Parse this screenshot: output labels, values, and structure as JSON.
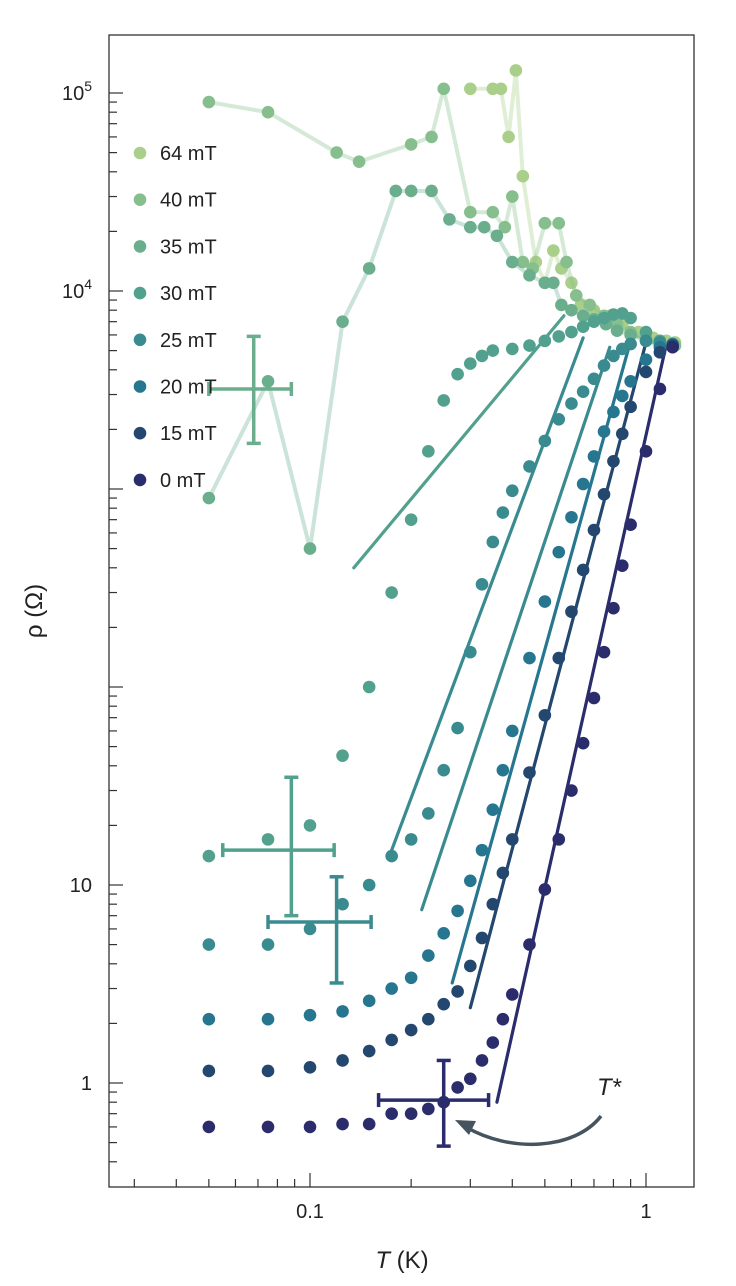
{
  "chart_data": {
    "type": "scatter",
    "xlabel_symbol": "T",
    "xlabel_unit": " (K)",
    "ylabel": "ρ (Ω)",
    "xscale": "log",
    "yscale": "log",
    "xlim": [
      0.028,
      1.4
    ],
    "ylim": [
      0.3,
      200000
    ],
    "grid": false,
    "legend_placement": "top-left",
    "x_ticks": [
      {
        "value": 0.1,
        "label": "0.1"
      },
      {
        "value": 1,
        "label": "1"
      }
    ],
    "y_ticks": [
      {
        "value": 1,
        "base": "1",
        "exp": ""
      },
      {
        "value": 10,
        "base": "10",
        "exp": ""
      },
      {
        "value": 10000,
        "base": "10",
        "exp": "4"
      },
      {
        "value": 100000,
        "base": "10",
        "exp": "5"
      }
    ],
    "series": [
      {
        "name": "64 mT",
        "color": "#a9cf8a",
        "line": true,
        "x": [
          0.3,
          0.35,
          0.37,
          0.39,
          0.41,
          0.43,
          0.47,
          0.5,
          0.53,
          0.56,
          0.6,
          0.64,
          0.7,
          0.78,
          0.85,
          0.95,
          1.05,
          1.15,
          1.22
        ],
        "y": [
          105000,
          105000,
          105000,
          60000,
          130000,
          38000,
          14000,
          11000,
          16000,
          13000,
          11000,
          8500,
          8000,
          7500,
          6800,
          6200,
          5800,
          5600,
          5500
        ]
      },
      {
        "name": "40 mT",
        "color": "#86bf8d",
        "line": true,
        "x": [
          0.05,
          0.075,
          0.12,
          0.14,
          0.2,
          0.23,
          0.25,
          0.3,
          0.35,
          0.38,
          0.4,
          0.43,
          0.46,
          0.5,
          0.55,
          0.58,
          0.62,
          0.68,
          0.75,
          0.82,
          0.9,
          1.0,
          1.1,
          1.22
        ],
        "y": [
          90000,
          80000,
          50000,
          45000,
          55000,
          60000,
          105000,
          25000,
          25000,
          21000,
          30000,
          14000,
          13000,
          22000,
          22000,
          14000,
          9500,
          8500,
          7500,
          6800,
          6200,
          5800,
          5500,
          5300
        ]
      },
      {
        "name": "35 mT",
        "color": "#6aae8e",
        "line": true,
        "x": [
          0.05,
          0.075,
          0.1,
          0.125,
          0.15,
          0.18,
          0.2,
          0.23,
          0.26,
          0.3,
          0.33,
          0.36,
          0.4,
          0.45,
          0.5,
          0.53,
          0.56,
          0.6,
          0.65,
          0.7,
          0.76,
          0.82,
          0.9,
          1.0,
          1.1,
          1.2
        ],
        "y": [
          900,
          3500,
          500,
          7000,
          13000,
          32000,
          32000,
          32000,
          23000,
          21000,
          21000,
          19000,
          14000,
          12000,
          11000,
          11000,
          8500,
          8000,
          7500,
          7200,
          6800,
          6300,
          6000,
          5600,
          5300,
          5200
        ]
      },
      {
        "name": "30 mT",
        "color": "#52a08e",
        "line": false,
        "x": [
          0.05,
          0.075,
          0.1,
          0.125,
          0.15,
          0.175,
          0.2,
          0.225,
          0.25,
          0.275,
          0.3,
          0.325,
          0.35,
          0.4,
          0.45,
          0.5,
          0.55,
          0.6,
          0.65,
          0.7,
          0.75,
          0.8,
          0.85,
          0.9,
          1.0,
          1.1,
          1.2
        ],
        "y": [
          14,
          17,
          20,
          45,
          100,
          300,
          700,
          1550,
          2800,
          3800,
          4300,
          4700,
          5000,
          5100,
          5300,
          5600,
          5900,
          6200,
          6600,
          7000,
          7300,
          7600,
          7700,
          7300,
          6200,
          5600,
          5300
        ]
      },
      {
        "name": "25 mT",
        "color": "#3a8b8f",
        "line": false,
        "x": [
          0.05,
          0.075,
          0.1,
          0.125,
          0.15,
          0.175,
          0.2,
          0.225,
          0.25,
          0.275,
          0.3,
          0.325,
          0.35,
          0.375,
          0.4,
          0.45,
          0.5,
          0.55,
          0.6,
          0.65,
          0.7,
          0.75,
          0.8,
          0.85,
          0.9,
          1.0,
          1.1,
          1.2
        ],
        "y": [
          5,
          5,
          6,
          8,
          10,
          14,
          17,
          23,
          38,
          62,
          150,
          330,
          540,
          760,
          980,
          1300,
          1750,
          2250,
          2700,
          3100,
          3600,
          4200,
          4700,
          5100,
          5400,
          5600,
          5500,
          5300
        ]
      },
      {
        "name": "20 mT",
        "color": "#277690",
        "line": false,
        "x": [
          0.05,
          0.075,
          0.1,
          0.125,
          0.15,
          0.175,
          0.2,
          0.225,
          0.25,
          0.275,
          0.3,
          0.325,
          0.35,
          0.375,
          0.4,
          0.45,
          0.5,
          0.55,
          0.6,
          0.65,
          0.7,
          0.75,
          0.8,
          0.85,
          0.9,
          1.0,
          1.1,
          1.2
        ],
        "y": [
          2.1,
          2.1,
          2.2,
          2.3,
          2.6,
          3.0,
          3.4,
          4.4,
          5.7,
          7.4,
          10.5,
          15,
          24,
          38,
          60,
          140,
          270,
          480,
          720,
          1060,
          1460,
          1950,
          2450,
          2950,
          3500,
          4500,
          5200,
          5400
        ]
      },
      {
        "name": "15 mT",
        "color": "#23476e",
        "line": false,
        "x": [
          0.05,
          0.075,
          0.1,
          0.125,
          0.15,
          0.175,
          0.2,
          0.225,
          0.25,
          0.275,
          0.3,
          0.325,
          0.35,
          0.375,
          0.4,
          0.45,
          0.5,
          0.55,
          0.6,
          0.65,
          0.7,
          0.75,
          0.8,
          0.85,
          0.9,
          1.0,
          1.1,
          1.2
        ],
        "y": [
          1.15,
          1.15,
          1.2,
          1.3,
          1.45,
          1.65,
          1.85,
          2.1,
          2.5,
          2.9,
          3.9,
          5.4,
          8,
          11.5,
          17,
          37,
          72,
          140,
          240,
          390,
          620,
          940,
          1380,
          1900,
          2600,
          3900,
          4900,
          5300
        ]
      },
      {
        "name": "0 mT",
        "color": "#2b2c6b",
        "line": false,
        "x": [
          0.05,
          0.075,
          0.1,
          0.125,
          0.15,
          0.175,
          0.2,
          0.225,
          0.25,
          0.275,
          0.3,
          0.325,
          0.35,
          0.375,
          0.4,
          0.45,
          0.5,
          0.55,
          0.6,
          0.65,
          0.7,
          0.75,
          0.8,
          0.85,
          0.9,
          1.0,
          1.1,
          1.2
        ],
        "y": [
          0.6,
          0.6,
          0.6,
          0.62,
          0.62,
          0.7,
          0.7,
          0.74,
          0.8,
          0.95,
          1.05,
          1.3,
          1.6,
          2.1,
          2.8,
          5,
          9.5,
          17,
          30,
          52,
          88,
          150,
          250,
          410,
          660,
          1550,
          3200,
          5200
        ]
      }
    ],
    "fits": [
      {
        "color": "#52a08e",
        "x": [
          0.135,
          0.57
        ],
        "y": [
          400,
          7500
        ]
      },
      {
        "color": "#3a8b8f",
        "x": [
          0.175,
          0.65
        ],
        "y": [
          15,
          5800
        ]
      },
      {
        "color": "#3a8b8f",
        "x": [
          0.215,
          0.78
        ],
        "y": [
          7.5,
          5200
        ]
      },
      {
        "color": "#277690",
        "x": [
          0.265,
          0.9
        ],
        "y": [
          3.2,
          5600
        ]
      },
      {
        "color": "#23476e",
        "x": [
          0.3,
          1.0
        ],
        "y": [
          2.4,
          5500
        ]
      },
      {
        "color": "#2b2c6b",
        "x": [
          0.36,
          1.15
        ],
        "y": [
          0.8,
          5400
        ]
      }
    ],
    "error_bars": [
      {
        "color": "#6aae8e",
        "x": 0.068,
        "y": 3200,
        "xlow": 0.05,
        "xhigh": 0.088,
        "ylow": 1700,
        "yhigh": 5900
      },
      {
        "color": "#52a08e",
        "x": 0.088,
        "y": 15,
        "xlow": 0.055,
        "xhigh": 0.118,
        "ylow": 7,
        "yhigh": 35
      },
      {
        "color": "#3a8b8f",
        "x": 0.12,
        "y": 6.5,
        "xlow": 0.075,
        "xhigh": 0.152,
        "ylow": 3.2,
        "yhigh": 11
      },
      {
        "color": "#2b2c6b",
        "x": 0.25,
        "y": 0.82,
        "xlow": 0.16,
        "xhigh": 0.34,
        "ylow": 0.48,
        "yhigh": 1.3
      }
    ],
    "annotation": {
      "text": "T*",
      "color": "#46545f"
    }
  }
}
